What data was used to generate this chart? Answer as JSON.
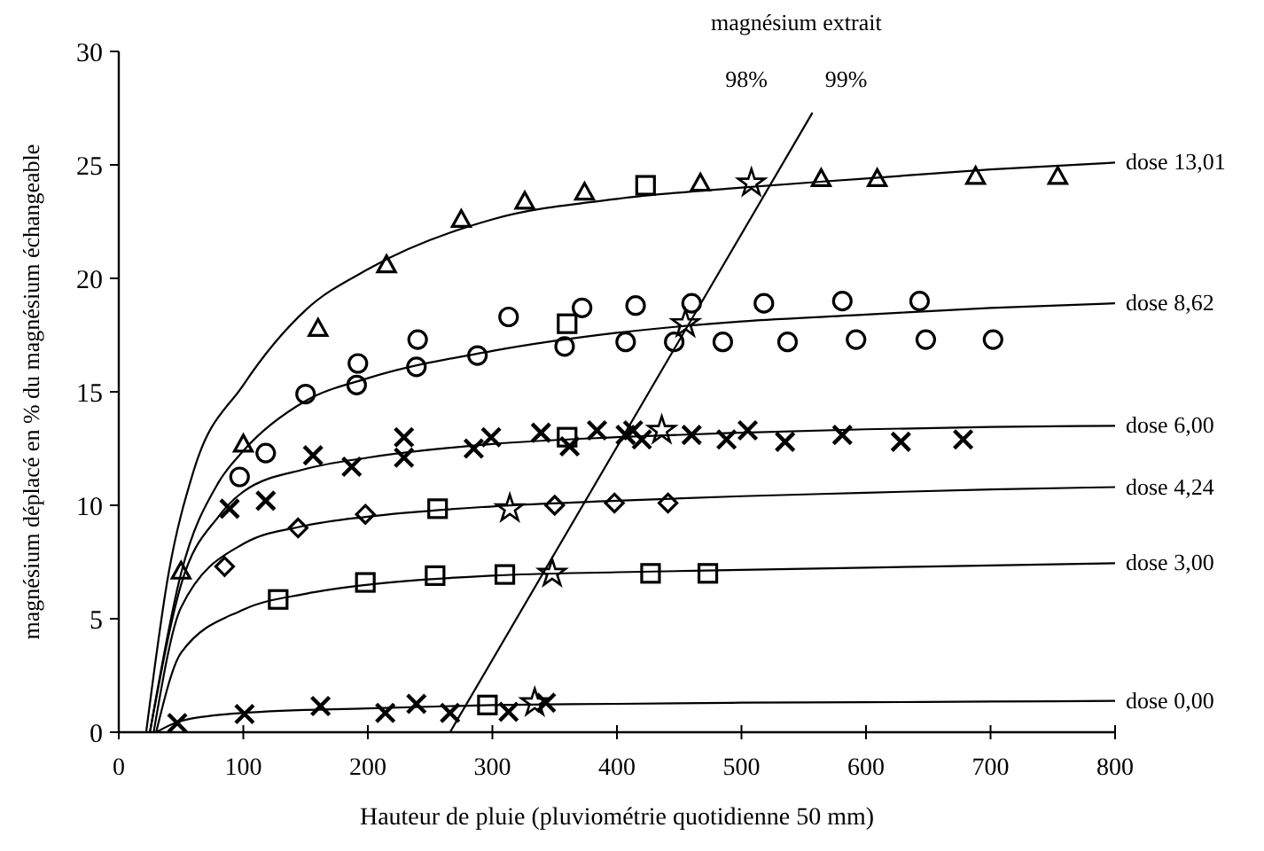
{
  "chart_data": {
    "type": "scatter",
    "xlabel": "Hauteur de pluie (pluviométrie quotidienne  50 mm)",
    "ylabel": "magnésium déplacé en % du magnésium échangeable",
    "xlim": [
      0,
      800
    ],
    "xticks": [
      0,
      100,
      200,
      300,
      400,
      500,
      600,
      700,
      800
    ],
    "ylim": [
      0,
      30
    ],
    "yticks": [
      0,
      5,
      10,
      15,
      20,
      25,
      30
    ],
    "grid": false,
    "annotations": [
      "magnésium extrait",
      "98%",
      "99%"
    ],
    "series": [
      {
        "type": "line",
        "name": "dose 13,01",
        "color": "#000000",
        "marker": "none",
        "x": [
          22,
          40,
          60,
          100,
          150,
          200,
          300,
          400,
          500,
          600,
          700,
          800
        ],
        "values": [
          0,
          7,
          11.5,
          15.3,
          18.6,
          20.4,
          22.6,
          23.5,
          24,
          24.4,
          24.8,
          25.1
        ]
      },
      {
        "type": "line",
        "name": "dose 8,62",
        "color": "#000000",
        "marker": "none",
        "x": [
          25,
          50,
          80,
          100,
          150,
          200,
          300,
          400,
          500,
          600,
          700,
          800
        ],
        "values": [
          0,
          7,
          11,
          12.4,
          14.6,
          15.6,
          16.8,
          17.6,
          18.1,
          18.4,
          18.7,
          18.9
        ]
      },
      {
        "type": "line",
        "name": "dose 6,00",
        "color": "#000000",
        "marker": "none",
        "x": [
          25,
          50,
          80,
          100,
          150,
          200,
          300,
          400,
          500,
          600,
          700,
          800
        ],
        "values": [
          0,
          6.5,
          9.5,
          10.6,
          11.6,
          12.1,
          12.7,
          13,
          13.2,
          13.35,
          13.45,
          13.5
        ]
      },
      {
        "type": "line",
        "name": "dose 4,24",
        "color": "#000000",
        "marker": "none",
        "x": [
          28,
          50,
          100,
          150,
          200,
          300,
          400,
          500,
          600,
          700,
          800
        ],
        "values": [
          0,
          5.5,
          8.3,
          9.1,
          9.5,
          9.95,
          10.2,
          10.4,
          10.55,
          10.7,
          10.8
        ]
      },
      {
        "type": "line",
        "name": "dose 3,00",
        "color": "#000000",
        "marker": "none",
        "x": [
          30,
          50,
          100,
          150,
          200,
          300,
          400,
          500,
          600,
          700,
          800
        ],
        "values": [
          0,
          3.5,
          5.4,
          6.1,
          6.5,
          6.9,
          7.05,
          7.15,
          7.25,
          7.35,
          7.45
        ]
      },
      {
        "type": "line",
        "name": "dose 0,00",
        "color": "#000000",
        "marker": "none",
        "x": [
          30,
          50,
          100,
          200,
          300,
          400,
          500,
          600,
          700,
          800
        ],
        "values": [
          0,
          0.5,
          0.85,
          1.05,
          1.2,
          1.25,
          1.3,
          1.32,
          1.35,
          1.38
        ]
      },
      {
        "type": "line",
        "color": "#000000",
        "marker": "none",
        "x": [
          266,
          557
        ],
        "values": [
          0,
          27.3
        ]
      },
      {
        "color": "#000000",
        "marker": "triangle",
        "x": [
          50,
          100,
          160,
          215,
          275,
          326,
          374,
          467,
          564,
          609,
          688,
          754
        ],
        "values": [
          7.1,
          12.7,
          17.8,
          20.6,
          22.6,
          23.4,
          23.8,
          24.2,
          24.4,
          24.4,
          24.5,
          24.5
        ]
      },
      {
        "color": "#000000",
        "marker": "circle",
        "x": [
          97,
          118,
          150,
          191,
          192,
          239,
          240,
          288,
          313,
          358,
          372,
          407,
          415,
          446,
          460,
          485,
          518,
          537,
          581,
          592,
          643,
          648,
          702
        ],
        "values": [
          11.25,
          12.3,
          14.9,
          15.3,
          16.25,
          16.1,
          17.3,
          16.6,
          18.3,
          17,
          18.7,
          17.2,
          18.8,
          17.2,
          18.9,
          17.2,
          18.9,
          17.2,
          19,
          17.3,
          19,
          17.3,
          17.3
        ]
      },
      {
        "color": "#000000",
        "marker": "cross",
        "x": [
          89,
          118,
          156,
          187,
          229,
          229,
          285,
          299,
          339,
          362,
          384,
          407,
          413,
          420,
          460,
          488,
          505,
          535,
          581,
          628,
          678
        ],
        "values": [
          9.85,
          10.2,
          12.2,
          11.7,
          13,
          12.1,
          12.5,
          13,
          13.2,
          12.6,
          13.3,
          13.1,
          13.3,
          12.9,
          13.1,
          12.9,
          13.3,
          12.8,
          13.1,
          12.8,
          12.9
        ]
      },
      {
        "color": "#000000",
        "marker": "diamond",
        "x": [
          85,
          144,
          198,
          350,
          398,
          441
        ],
        "values": [
          7.3,
          9,
          9.6,
          10,
          10.1,
          10.1
        ]
      },
      {
        "color": "#000000",
        "marker": "square",
        "x": [
          128,
          198,
          254,
          427,
          473
        ],
        "values": [
          5.85,
          6.6,
          6.9,
          7,
          7
        ]
      },
      {
        "color": "#000000",
        "marker": "cross",
        "x": [
          47,
          101,
          162,
          214,
          239,
          266,
          313,
          343
        ],
        "values": [
          0.4,
          0.8,
          1.15,
          0.85,
          1.25,
          0.85,
          0.9,
          1.3
        ]
      },
      {
        "color": "#000000",
        "marker": "square",
        "x": [
          423,
          360,
          360,
          256,
          310,
          296
        ],
        "values": [
          24.1,
          18,
          13,
          9.85,
          6.95,
          1.2
        ]
      },
      {
        "color": "#000000",
        "marker": "star",
        "x": [
          508,
          455,
          436,
          314,
          348,
          334
        ],
        "values": [
          24.2,
          18,
          13.3,
          9.85,
          7,
          1.3
        ]
      }
    ]
  }
}
